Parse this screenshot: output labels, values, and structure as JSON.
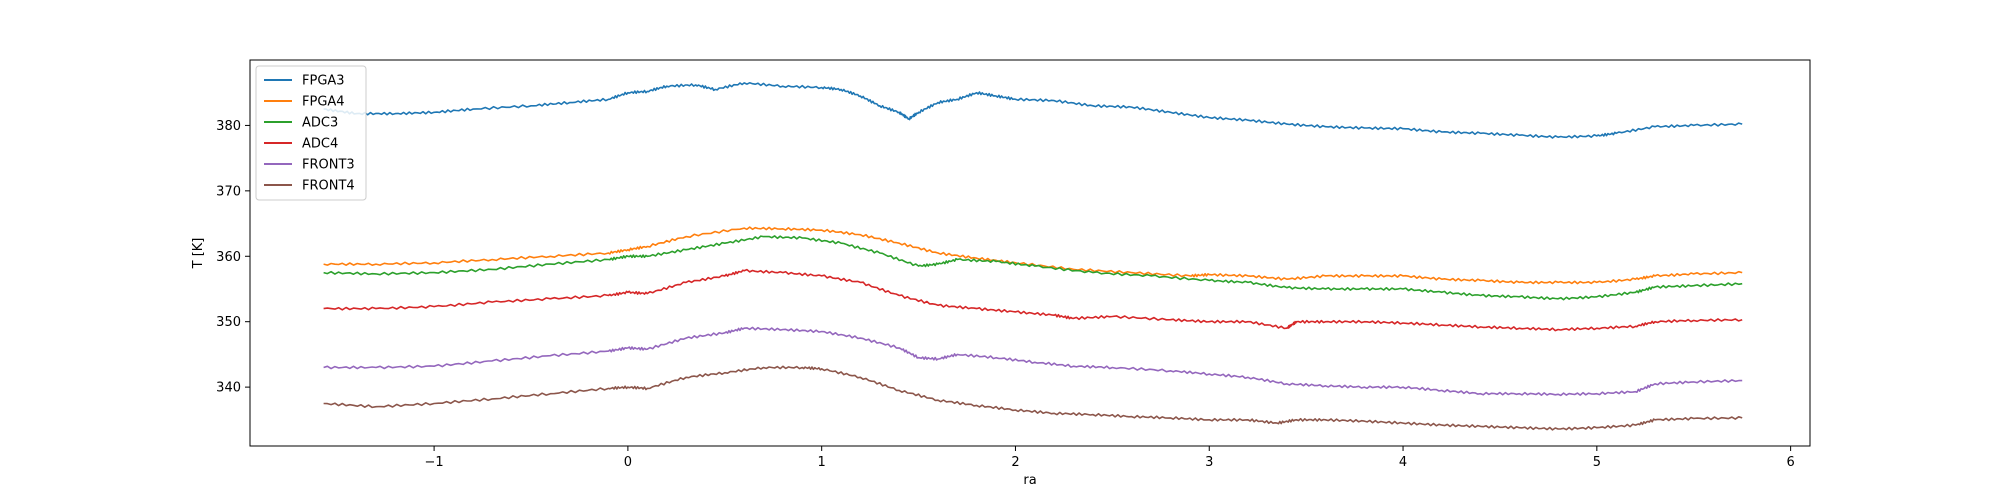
{
  "chart_data": {
    "type": "line",
    "title": "",
    "xlabel": "ra",
    "ylabel": "T [K]",
    "xlim": [
      -1.95,
      6.1
    ],
    "ylim": [
      331,
      390
    ],
    "xticks": [
      -1,
      0,
      1,
      2,
      3,
      4,
      5,
      6
    ],
    "xtick_labels": [
      "−1",
      "0",
      "1",
      "2",
      "3",
      "4",
      "5",
      "6"
    ],
    "yticks": [
      340,
      350,
      360,
      370,
      380
    ],
    "ytick_labels": [
      "340",
      "350",
      "360",
      "370",
      "380"
    ],
    "grid": false,
    "legend_position": "top-left",
    "series": [
      {
        "name": "FPGA3",
        "color": "#1f77b4",
        "x": [
          -1.57,
          -1.4,
          -1.2,
          -1.0,
          -0.8,
          -0.5,
          -0.3,
          -0.1,
          0.0,
          0.1,
          0.2,
          0.35,
          0.45,
          0.6,
          0.8,
          1.0,
          1.1,
          1.2,
          1.3,
          1.4,
          1.45,
          1.5,
          1.6,
          1.7,
          1.8,
          1.9,
          2.0,
          2.2,
          2.4,
          2.6,
          2.8,
          3.0,
          3.2,
          3.4,
          3.6,
          3.8,
          4.0,
          4.2,
          4.4,
          4.6,
          4.8,
          5.0,
          5.1,
          5.3,
          5.5,
          5.75
        ],
        "y": [
          382.5,
          381.8,
          381.8,
          382.0,
          382.5,
          383.0,
          383.5,
          384.0,
          385.0,
          385.2,
          386.0,
          386.2,
          385.5,
          386.5,
          386.0,
          385.8,
          385.5,
          384.5,
          383.0,
          382.0,
          381.0,
          382.0,
          383.5,
          384.0,
          385.0,
          384.5,
          384.0,
          383.8,
          383.0,
          382.8,
          382.0,
          381.2,
          380.8,
          380.2,
          379.8,
          379.6,
          379.5,
          379.0,
          378.8,
          378.5,
          378.2,
          378.4,
          378.8,
          379.8,
          380.0,
          380.2
        ]
      },
      {
        "name": "FPGA4",
        "color": "#ff7f0e",
        "x": [
          -1.57,
          -1.3,
          -1.0,
          -0.7,
          -0.4,
          -0.1,
          0.0,
          0.1,
          0.3,
          0.6,
          0.8,
          1.0,
          1.2,
          1.4,
          1.6,
          1.8,
          2.0,
          2.3,
          2.6,
          2.9,
          3.0,
          3.2,
          3.4,
          3.6,
          3.8,
          4.0,
          4.2,
          4.4,
          4.6,
          4.8,
          5.0,
          5.2,
          5.3,
          5.5,
          5.75
        ],
        "y": [
          358.8,
          358.8,
          359.0,
          359.5,
          360.0,
          360.5,
          361.0,
          361.5,
          363.0,
          364.3,
          364.2,
          364.0,
          363.3,
          362.0,
          360.5,
          359.7,
          359.0,
          358.0,
          357.5,
          357.0,
          357.2,
          357.0,
          356.5,
          357.0,
          357.0,
          357.0,
          356.5,
          356.3,
          356.0,
          356.0,
          356.0,
          356.5,
          357.0,
          357.3,
          357.5
        ]
      },
      {
        "name": "ADC3",
        "color": "#2ca02c",
        "x": [
          -1.57,
          -1.3,
          -1.0,
          -0.7,
          -0.4,
          -0.1,
          0.0,
          0.1,
          0.3,
          0.5,
          0.7,
          0.9,
          1.1,
          1.3,
          1.5,
          1.6,
          1.7,
          1.9,
          2.1,
          2.4,
          2.7,
          3.0,
          3.2,
          3.4,
          3.6,
          3.8,
          4.0,
          4.2,
          4.4,
          4.6,
          4.8,
          5.0,
          5.2,
          5.3,
          5.5,
          5.75
        ],
        "y": [
          357.5,
          357.3,
          357.5,
          358.0,
          358.8,
          359.5,
          360.0,
          360.0,
          361.0,
          362.0,
          363.0,
          362.8,
          362.0,
          360.5,
          358.5,
          358.8,
          359.5,
          359.2,
          358.5,
          357.5,
          357.0,
          356.3,
          356.0,
          355.2,
          355.0,
          355.0,
          355.0,
          354.5,
          354.0,
          353.8,
          353.5,
          353.8,
          354.5,
          355.3,
          355.5,
          355.8
        ]
      },
      {
        "name": "ADC4",
        "color": "#d62728",
        "x": [
          -1.57,
          -1.3,
          -1.0,
          -0.7,
          -0.4,
          -0.1,
          0.0,
          0.1,
          0.3,
          0.5,
          0.6,
          0.8,
          1.0,
          1.2,
          1.4,
          1.6,
          1.8,
          2.0,
          2.2,
          2.3,
          2.5,
          2.8,
          3.0,
          3.2,
          3.4,
          3.45,
          3.6,
          3.8,
          4.0,
          4.2,
          4.4,
          4.6,
          4.8,
          5.0,
          5.2,
          5.3,
          5.5,
          5.75
        ],
        "y": [
          352.0,
          352.0,
          352.3,
          353.0,
          353.5,
          354.0,
          354.5,
          354.3,
          356.0,
          357.0,
          357.8,
          357.5,
          357.0,
          356.0,
          354.0,
          352.5,
          352.0,
          351.5,
          351.0,
          350.5,
          350.8,
          350.3,
          350.0,
          350.0,
          349.0,
          350.0,
          350.0,
          350.0,
          349.8,
          349.5,
          349.2,
          349.0,
          348.8,
          349.0,
          349.3,
          350.0,
          350.2,
          350.3
        ]
      },
      {
        "name": "FRONT3",
        "color": "#9467bd",
        "x": [
          -1.57,
          -1.3,
          -1.0,
          -0.7,
          -0.4,
          -0.1,
          0.0,
          0.1,
          0.3,
          0.5,
          0.6,
          0.8,
          1.0,
          1.2,
          1.4,
          1.5,
          1.6,
          1.7,
          1.9,
          2.1,
          2.3,
          2.5,
          2.8,
          3.0,
          3.2,
          3.4,
          3.6,
          3.8,
          4.0,
          4.2,
          4.4,
          4.6,
          4.8,
          5.0,
          5.2,
          5.3,
          5.5,
          5.75
        ],
        "y": [
          343.0,
          343.0,
          343.2,
          344.0,
          344.8,
          345.5,
          346.0,
          345.8,
          347.5,
          348.3,
          349.0,
          348.8,
          348.5,
          347.5,
          346.0,
          344.5,
          344.3,
          345.0,
          344.5,
          343.8,
          343.2,
          343.0,
          342.5,
          342.0,
          341.5,
          340.5,
          340.2,
          340.0,
          340.0,
          339.5,
          339.0,
          339.0,
          338.9,
          339.0,
          339.3,
          340.5,
          340.8,
          341.0
        ]
      },
      {
        "name": "FRONT4",
        "color": "#8c564b",
        "x": [
          -1.57,
          -1.3,
          -1.0,
          -0.7,
          -0.4,
          -0.1,
          0.0,
          0.1,
          0.3,
          0.5,
          0.7,
          0.9,
          1.0,
          1.2,
          1.4,
          1.6,
          1.8,
          2.0,
          2.2,
          2.4,
          2.6,
          2.8,
          3.0,
          3.2,
          3.35,
          3.45,
          3.6,
          3.8,
          4.0,
          4.2,
          4.4,
          4.6,
          4.8,
          5.0,
          5.2,
          5.3,
          5.5,
          5.75
        ],
        "y": [
          337.5,
          337.0,
          337.5,
          338.2,
          339.0,
          339.8,
          340.0,
          339.8,
          341.5,
          342.2,
          343.0,
          343.0,
          342.8,
          341.5,
          339.5,
          338.0,
          337.2,
          336.5,
          336.0,
          335.8,
          335.5,
          335.3,
          335.0,
          335.0,
          334.5,
          335.0,
          335.0,
          334.8,
          334.5,
          334.2,
          334.0,
          333.8,
          333.6,
          333.8,
          334.2,
          335.0,
          335.2,
          335.3
        ]
      }
    ]
  }
}
